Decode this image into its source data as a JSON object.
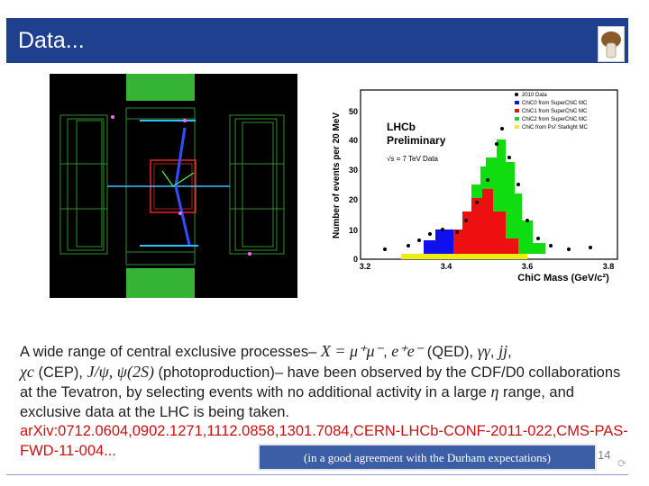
{
  "slide": {
    "title": "Data...",
    "page_number": "14"
  },
  "plot": {
    "legend": [
      "2010 Data",
      "ChiC0 from SuperChiC MC",
      "ChiC1 from SuperChiC MC",
      "ChiC2 from SuperChiC MC",
      "ChiC from Psi' Starlight MC"
    ],
    "legend_colors": [
      "#000000",
      "#1010ee",
      "#ee1010",
      "#10dd10",
      "#eeee10"
    ],
    "annotation_1": "LHCb",
    "annotation_2": "Preliminary",
    "annotation_3": "√s = 7 TeV Data",
    "ylabel": "Number of events per 20 MeV",
    "xlabel": "ChiC Mass (GeV/c²)",
    "xticks": [
      "3.2",
      "3.4",
      "3.6",
      "3.8"
    ],
    "yticks": [
      "0",
      "10",
      "20",
      "30",
      "40",
      "50"
    ]
  },
  "body": {
    "p1": "A wide range of central exclusive processes– ",
    "m1": "X = μ⁺μ⁻",
    "p2": ", ",
    "m2": "e⁺e⁻",
    "p3": " (QED), ",
    "m3": "γγ",
    "p4": ", ",
    "m4": "jj",
    "p5": ",",
    "m5": "χc",
    "p6": " (CEP), ",
    "m6": "J/ψ, ψ(2S)",
    "p7": " (photoproduction)– have been observed by the CDF/D0 collaborations at the Tevatron, by selecting events with no additional activity in a large ",
    "m7": "η",
    "p8": " range, and exclusive data at the LHC is being taken.",
    "ref": "arXiv:0712.0604,0902.1271,1112.0858,1301.7084,CERN-LHCb-CONF-2011-022,CMS-PAS-FWD-11-004..."
  },
  "banner": "(in a good agreement with the Durham expectations)"
}
